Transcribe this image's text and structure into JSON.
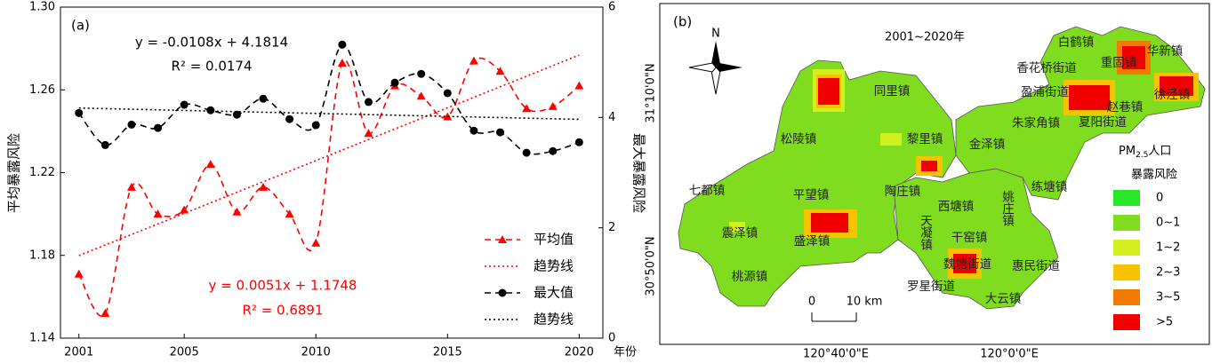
{
  "chart_data": {
    "type": "line",
    "label": "(a)",
    "x": [
      2001,
      2002,
      2003,
      2004,
      2005,
      2006,
      2007,
      2008,
      2009,
      2010,
      2011,
      2012,
      2013,
      2014,
      2015,
      2016,
      2017,
      2018,
      2019,
      2020
    ],
    "xlim": [
      2000.3,
      2020.9
    ],
    "xticks": [
      2001,
      2005,
      2010,
      2015,
      2020
    ],
    "x_label": "年份",
    "ylim": [
      1.14,
      1.3
    ],
    "yticks": [
      1.14,
      1.18,
      1.22,
      1.26,
      {
        "value": 1.3,
        "label": "1.30"
      }
    ],
    "y_label": "平均暴露风险",
    "y2lim": [
      0,
      6
    ],
    "y2ticks": [
      0,
      2,
      4,
      6
    ],
    "y2_label": "最大暴露风险",
    "series": [
      {
        "name": "平均值",
        "color": "#ff0000",
        "marker": "triangle",
        "style": "dashed",
        "values": [
          1.171,
          1.152,
          1.213,
          1.2,
          1.202,
          1.224,
          1.201,
          1.213,
          1.2,
          1.186,
          1.273,
          1.239,
          1.262,
          1.257,
          1.247,
          1.274,
          1.269,
          1.251,
          1.252,
          1.262
        ]
      },
      {
        "name": "趋势线",
        "color": "#ff0000",
        "style": "dotted",
        "values": [
          1.1799,
          1.185,
          1.1901,
          1.1952,
          1.2003,
          1.2054,
          1.2105,
          1.2156,
          1.2207,
          1.2258,
          1.2309,
          1.236,
          1.2411,
          1.2462,
          1.2513,
          1.2564,
          1.2615,
          1.2666,
          1.2717,
          1.2768
        ]
      },
      {
        "name": "最大值",
        "color": "#000000",
        "marker": "circle",
        "style": "dashed",
        "axis": "y2",
        "values": [
          4.08,
          3.5,
          3.87,
          3.81,
          4.23,
          4.13,
          4.05,
          4.34,
          3.97,
          3.86,
          5.32,
          4.28,
          4.63,
          4.79,
          4.44,
          3.76,
          3.73,
          3.36,
          3.39,
          3.55
        ]
      },
      {
        "name": "趋势线",
        "color": "#000000",
        "style": "dotted",
        "axis": "y2",
        "values": [
          4.1706,
          4.1598,
          4.149,
          4.1382,
          4.1274,
          4.1166,
          4.1058,
          4.095,
          4.0842,
          4.0734,
          4.0626,
          4.0518,
          4.041,
          4.0302,
          4.0194,
          4.0086,
          3.9978,
          3.987,
          3.9762,
          3.9654
        ]
      }
    ],
    "annotations": [
      "y = -0.0108x + 4.1814",
      "R² = 0.0174",
      "y = 0.0051x + 1.1748",
      "R² = 0.6891"
    ]
  },
  "map": {
    "label": "(b)",
    "title": "2001~2020年",
    "north": "N",
    "towns": [
      "白鹤镇",
      "华新镇",
      "重固镇",
      "香花桥街道",
      "盈浦街道",
      "徐泾镇",
      "赵巷镇",
      "夏阳街道",
      "朱家角镇",
      "同里镇",
      "松陵镇",
      "黎里镇",
      "金泽镇",
      "七都镇",
      "平望镇",
      "陶庄镇",
      "西塘镇",
      "姚庄镇",
      "练塘镇",
      "震泽镇",
      "盛泽镇",
      "天凝镇",
      "干窑镇",
      "魏塘街道",
      "惠民街道",
      "桃源镇",
      "罗星街道",
      "大云镇"
    ],
    "legend": {
      "title": [
        "PM",
        "2.5",
        "人口",
        "暴露风险"
      ],
      "items": [
        {
          "label": "0",
          "color": "#28e628"
        },
        {
          "label": "0~1",
          "color": "#7fdc1f"
        },
        {
          "label": "1~2",
          "color": "#d2f01e"
        },
        {
          "label": "2~3",
          "color": "#f7c300"
        },
        {
          "label": "3~5",
          "color": "#f27a00"
        },
        {
          "label": ">5",
          "color": "#f00000"
        }
      ]
    },
    "scale": [
      "0",
      "10 km"
    ],
    "lon": [
      "120°40'0\"E",
      "120°0'0\"E"
    ],
    "lat": [
      "31°10'0\"N",
      "30°50'0\"N"
    ]
  }
}
